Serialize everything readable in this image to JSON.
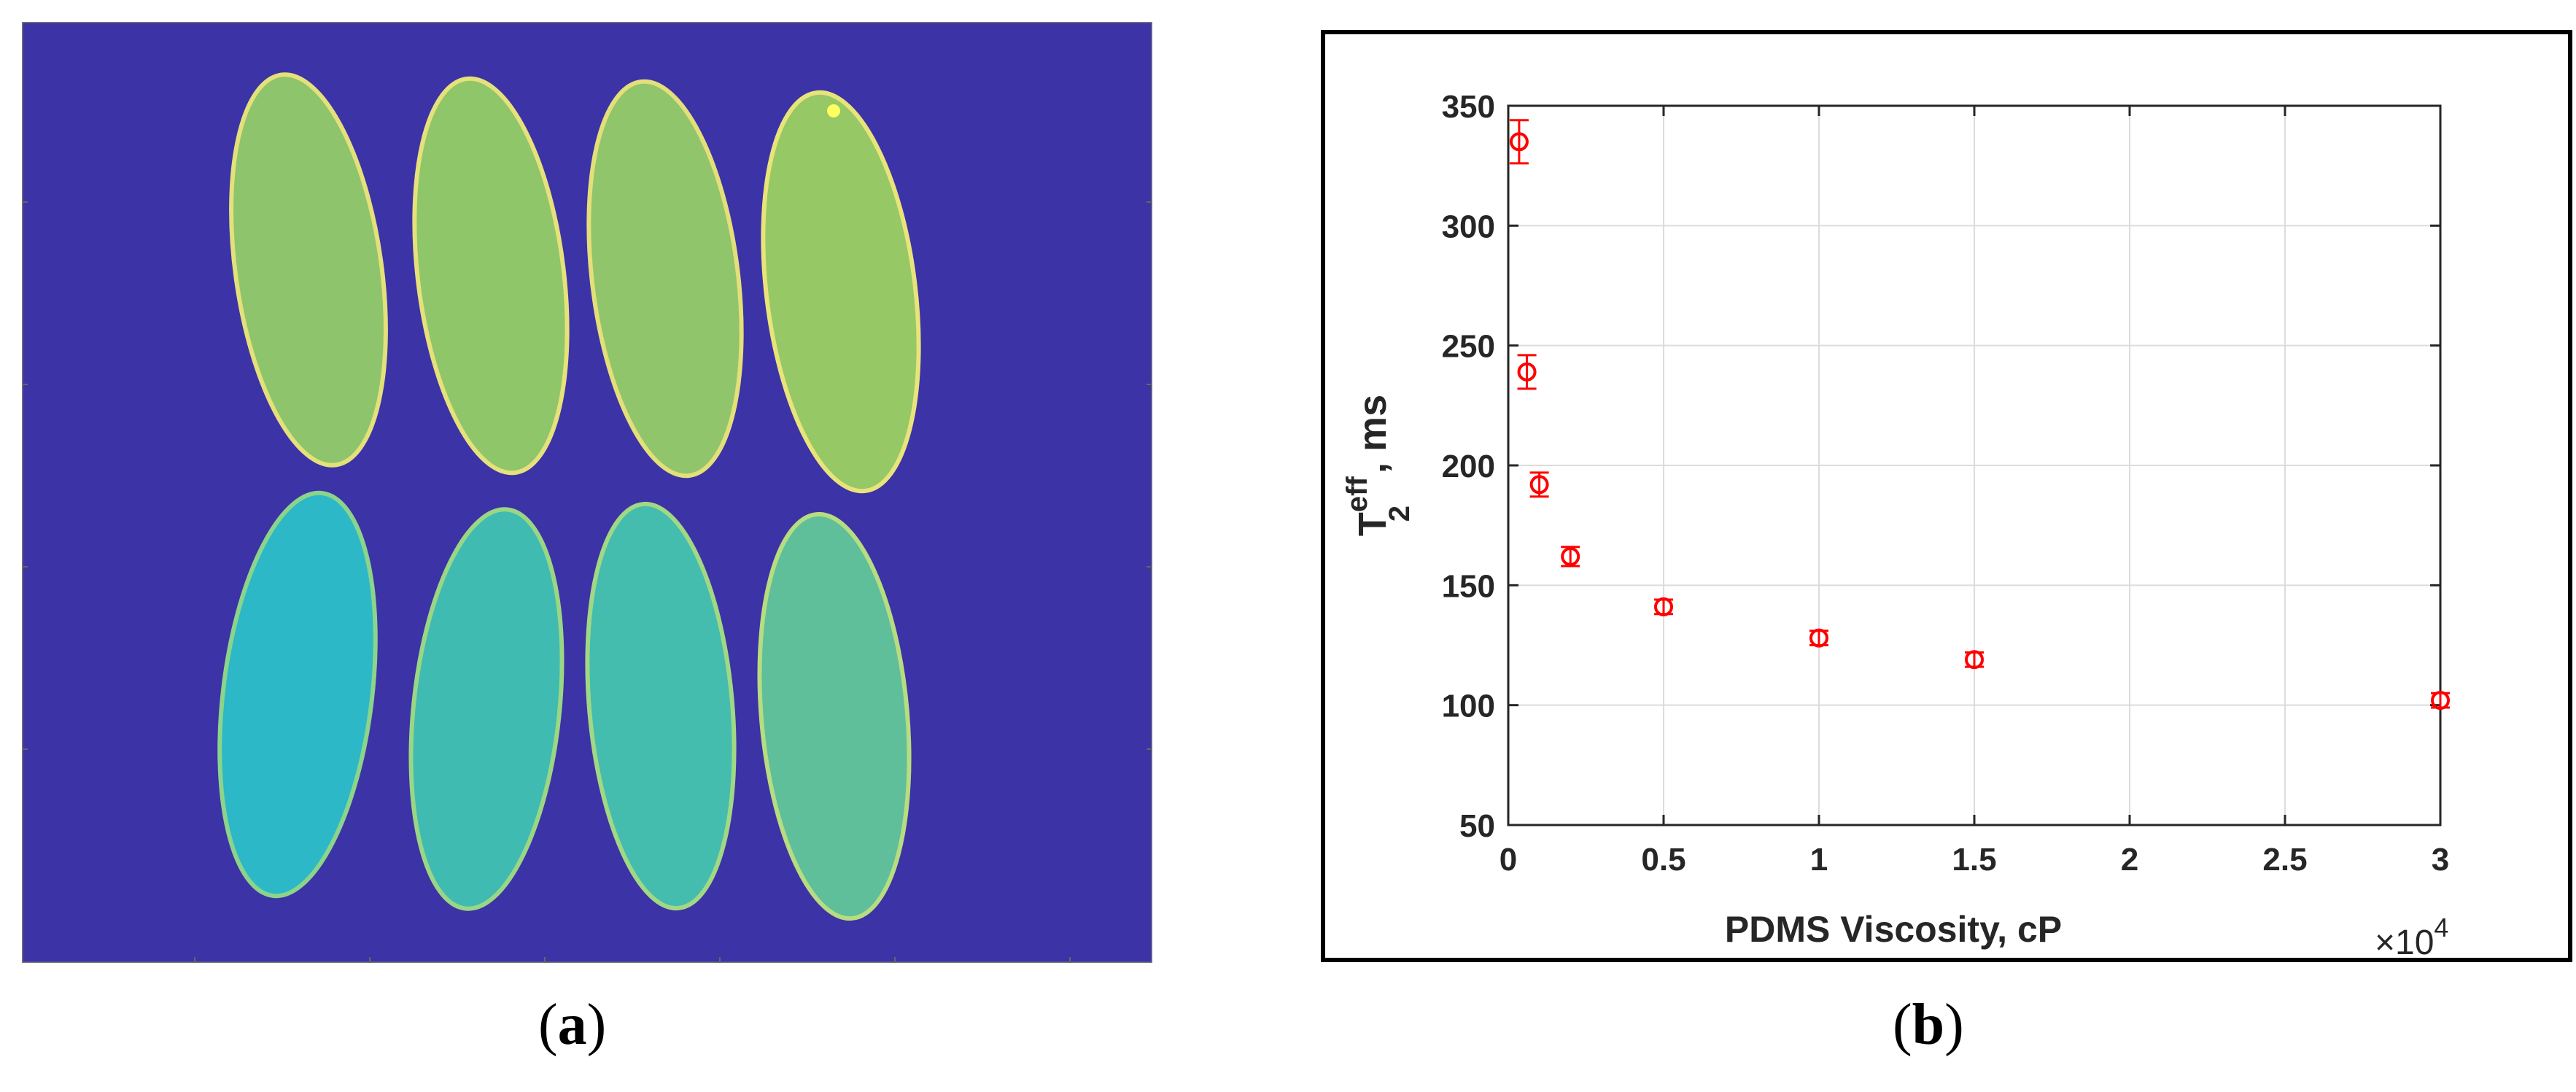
{
  "panel_a": {
    "caption_letter": "a",
    "background_color": "#3b33a6",
    "ellipse_colors": {
      "top_row": [
        "#8ec46b",
        "#8fc66a",
        "#90c56c",
        "#96c866"
      ],
      "bottom_row": [
        "#2cb8c6",
        "#3fbbb2",
        "#44bdae",
        "#5ebf9a"
      ]
    }
  },
  "panel_b": {
    "caption_letter": "b"
  },
  "chart_data": {
    "type": "scatter",
    "ylabel_main": "T",
    "ylabel_sup": "eff",
    "ylabel_sub": "2",
    "ylabel_suffix": ", ms",
    "xlabel": "PDMS Viscosity, cP",
    "x_multiplier_label": "×10",
    "x_multiplier_exp": "4",
    "xlim": [
      0,
      3
    ],
    "ylim": [
      50,
      350
    ],
    "xticks": [
      "0",
      "0.5",
      "1",
      "1.5",
      "2",
      "2.5",
      "3"
    ],
    "yticks": [
      "50",
      "100",
      "150",
      "200",
      "250",
      "300",
      "350"
    ],
    "grid": true,
    "marker_color": "#ff0000",
    "points": [
      {
        "x": 0.035,
        "y": 335,
        "err": 9
      },
      {
        "x": 0.06,
        "y": 239,
        "err": 7
      },
      {
        "x": 0.1,
        "y": 192,
        "err": 5
      },
      {
        "x": 0.2,
        "y": 162,
        "err": 4
      },
      {
        "x": 0.5,
        "y": 141,
        "err": 3
      },
      {
        "x": 1.0,
        "y": 128,
        "err": 3
      },
      {
        "x": 1.5,
        "y": 119,
        "err": 3
      },
      {
        "x": 3.0,
        "y": 102,
        "err": 3
      }
    ]
  }
}
